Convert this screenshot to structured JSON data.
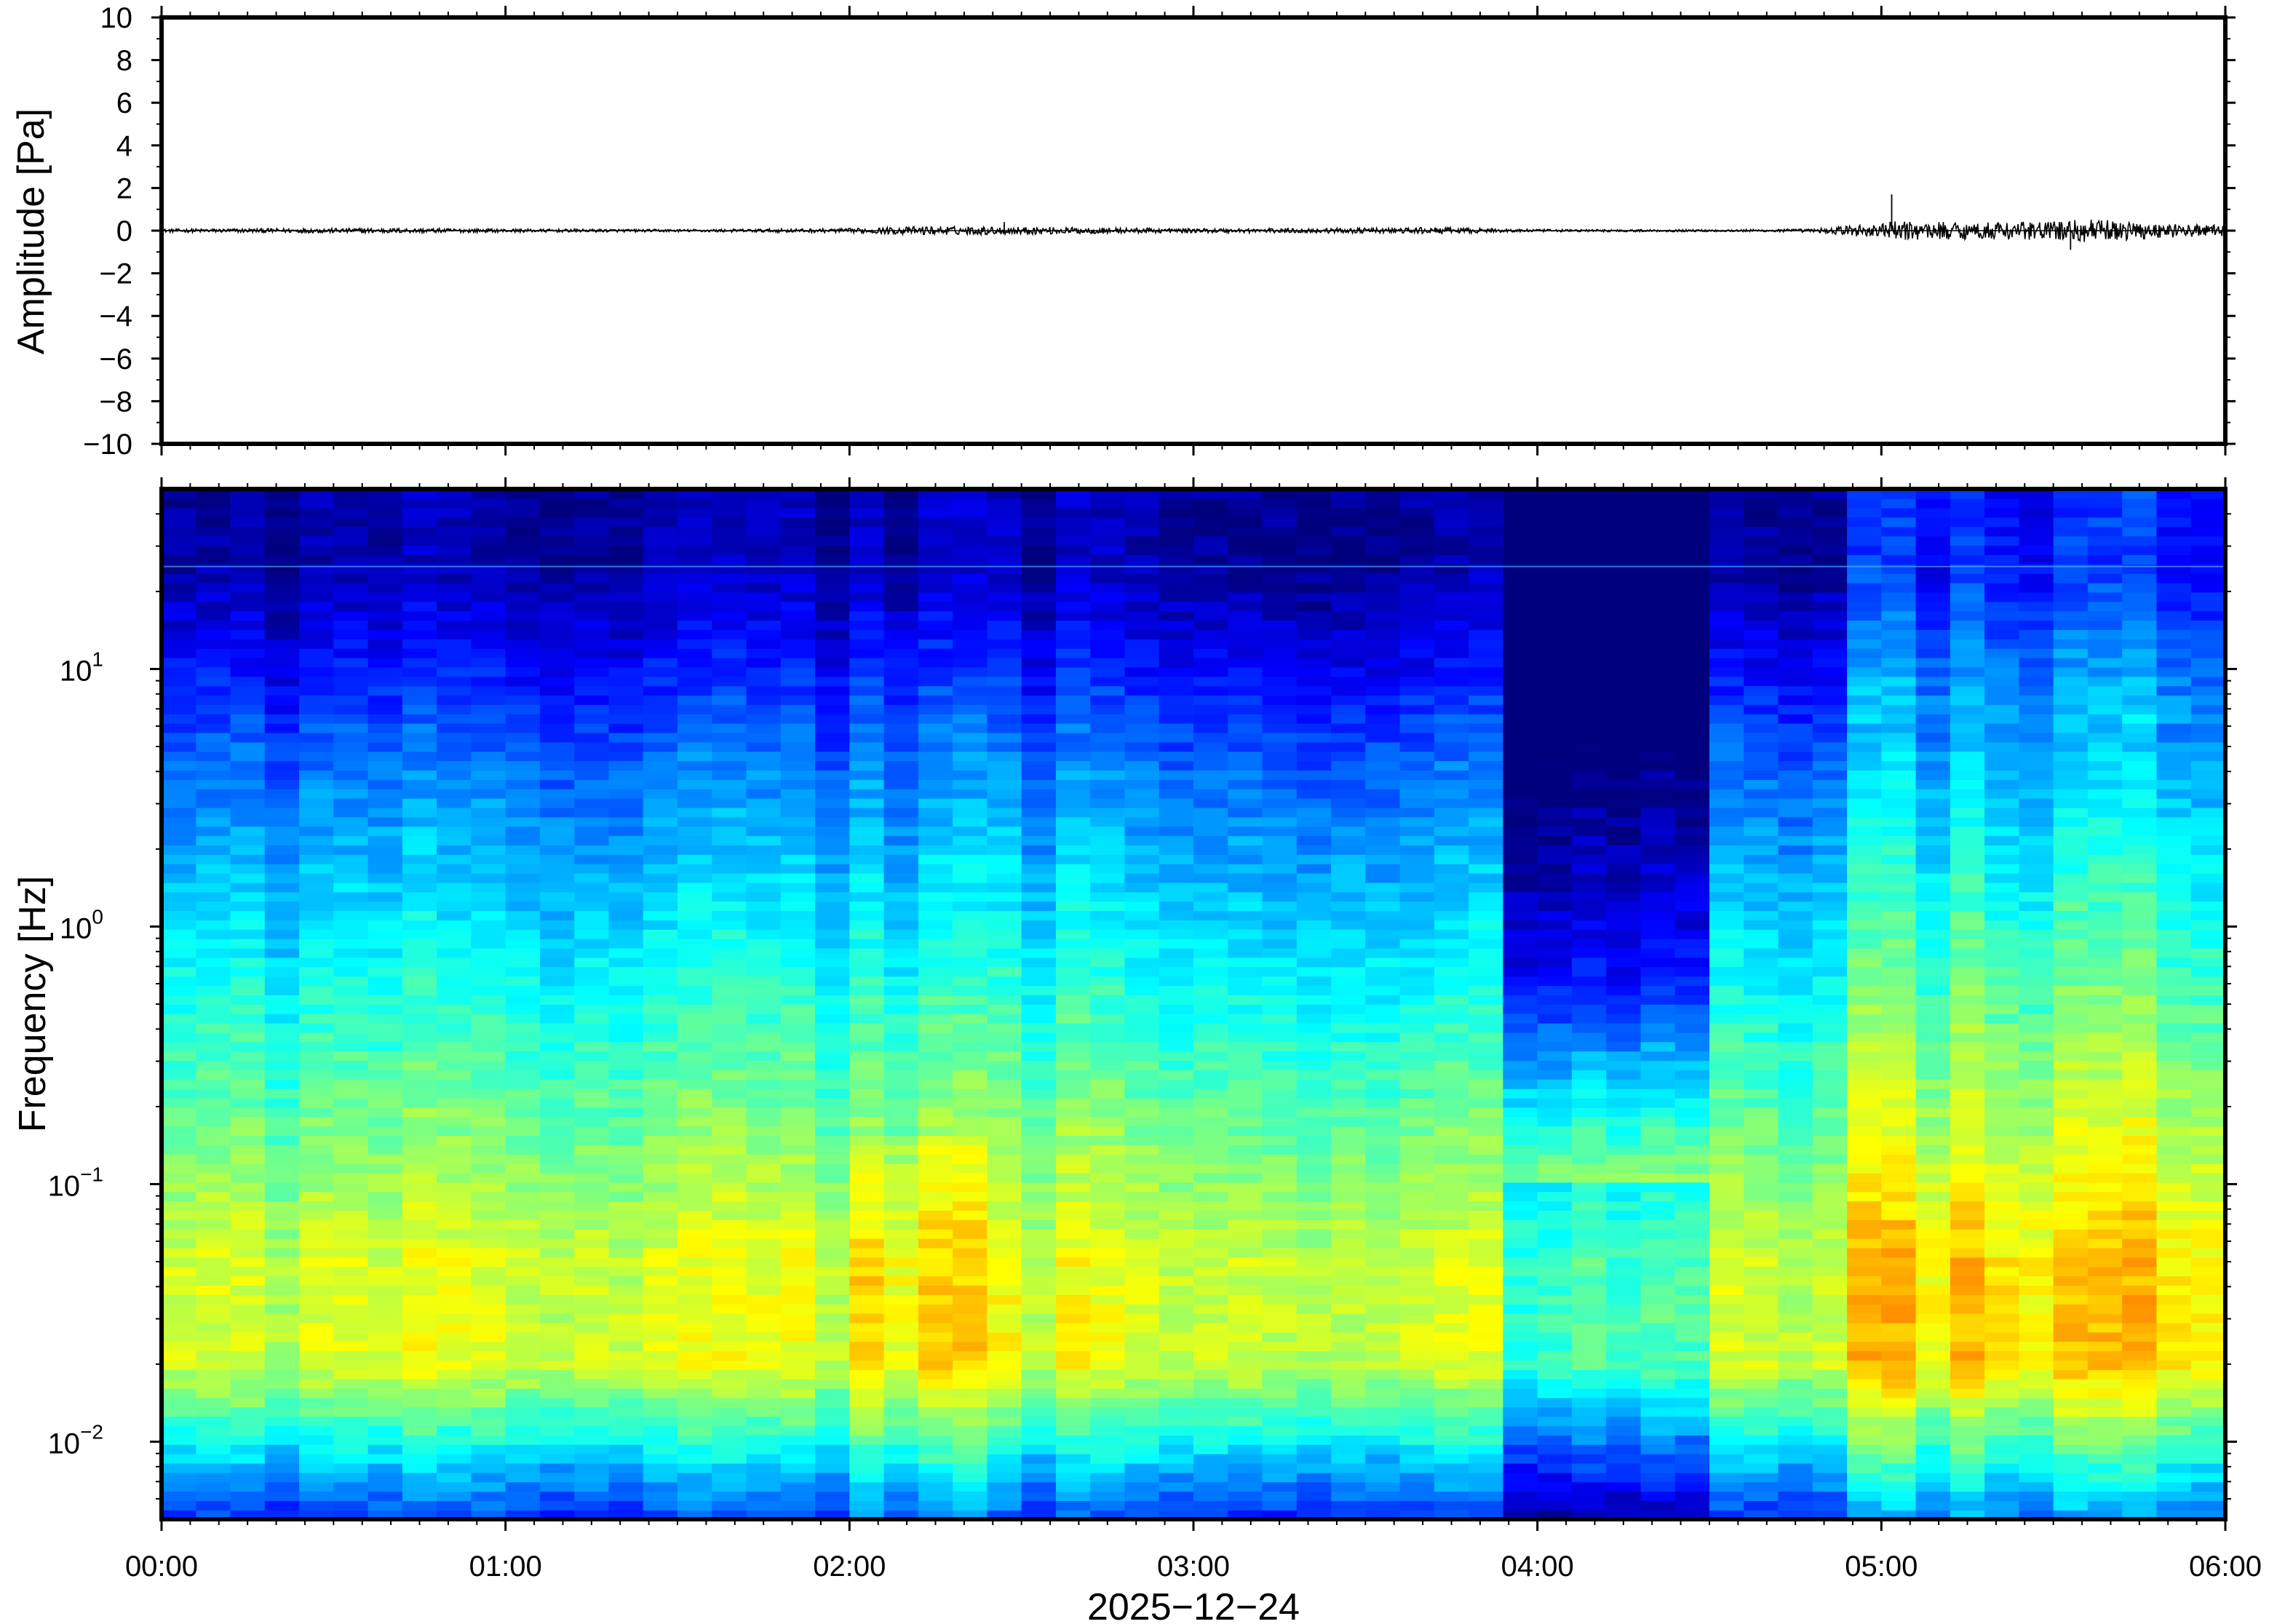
{
  "chart_data": [
    {
      "type": "line",
      "panel": "waveform",
      "ylabel": "Amplitude [Pa]",
      "ylim": [
        -10,
        10
      ],
      "yticks": [
        10,
        8,
        6,
        4,
        2,
        0,
        -2,
        -4,
        -6,
        -8,
        -10
      ],
      "ytick_labels": [
        "10",
        "8",
        "6",
        "4",
        "2",
        "0",
        "−2",
        "−4",
        "−6",
        "−8",
        "−10"
      ],
      "xlim_hours": [
        0,
        6
      ],
      "color": "#000000",
      "envelope": {
        "t_hours": [
          0.0,
          0.3,
          0.6,
          1.0,
          1.5,
          2.0,
          2.2,
          2.5,
          3.0,
          3.5,
          3.7,
          4.0,
          4.5,
          4.8,
          4.95,
          5.05,
          5.3,
          5.5,
          5.6,
          5.8,
          6.0
        ],
        "amp_pa": [
          0.08,
          0.1,
          0.12,
          0.08,
          0.06,
          0.1,
          0.2,
          0.18,
          0.1,
          0.12,
          0.15,
          0.06,
          0.05,
          0.08,
          0.3,
          0.45,
          0.4,
          0.45,
          0.55,
          0.35,
          0.25
        ]
      },
      "spikes": [
        {
          "t_hours": 5.03,
          "value": 1.7
        },
        {
          "t_hours": 5.55,
          "value": -0.9
        },
        {
          "t_hours": 2.45,
          "value": 0.4
        }
      ]
    },
    {
      "type": "heatmap",
      "panel": "spectrogram",
      "ylabel": "Frequency [Hz]",
      "yscale": "log",
      "ylim_hz": [
        0.005,
        50
      ],
      "yticks": [
        {
          "value": 10,
          "base": "10",
          "exp": "1"
        },
        {
          "value": 1,
          "base": "10",
          "exp": "0"
        },
        {
          "value": 0.1,
          "base": "10",
          "exp": "−1"
        },
        {
          "value": 0.01,
          "base": "10",
          "exp": "−2"
        }
      ],
      "colormap": [
        "#00007f",
        "#0000ff",
        "#007fff",
        "#00ffff",
        "#7fff7f",
        "#ffff00",
        "#ff7f00"
      ],
      "time_columns": 60,
      "frequency_rows": 110,
      "dark_band_hours": [
        3.85,
        4.55
      ],
      "loud_band_hours": [
        4.9,
        6.0
      ],
      "tone_line_hz": 25
    }
  ],
  "xaxis": {
    "xlim_hours": [
      0,
      6
    ],
    "ticks": [
      0,
      1,
      2,
      3,
      4,
      5,
      6
    ],
    "tick_labels": [
      "00:00",
      "01:00",
      "02:00",
      "03:00",
      "04:00",
      "05:00",
      "06:00"
    ],
    "label": "2025−12−24"
  }
}
